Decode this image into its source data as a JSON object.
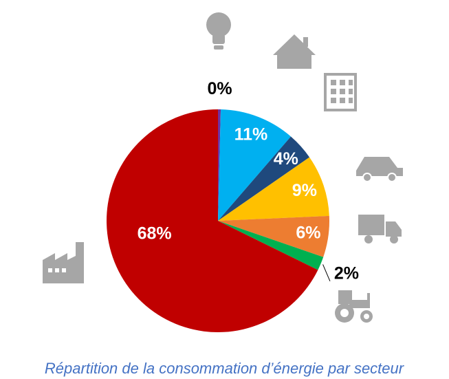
{
  "chart_data": {
    "type": "pie",
    "title": "Répartition de la consommation d’énergie par secteur",
    "values": [
      0.4,
      11,
      4,
      9,
      6,
      2,
      68
    ],
    "value_labels": [
      "0%",
      "11%",
      "4%",
      "9%",
      "6%",
      "2%",
      "68%"
    ],
    "colors": [
      "#7030a0",
      "#00b0f0",
      "#1f497d",
      "#ffc000",
      "#ed7d31",
      "#00b050",
      "#c00000"
    ]
  }
}
